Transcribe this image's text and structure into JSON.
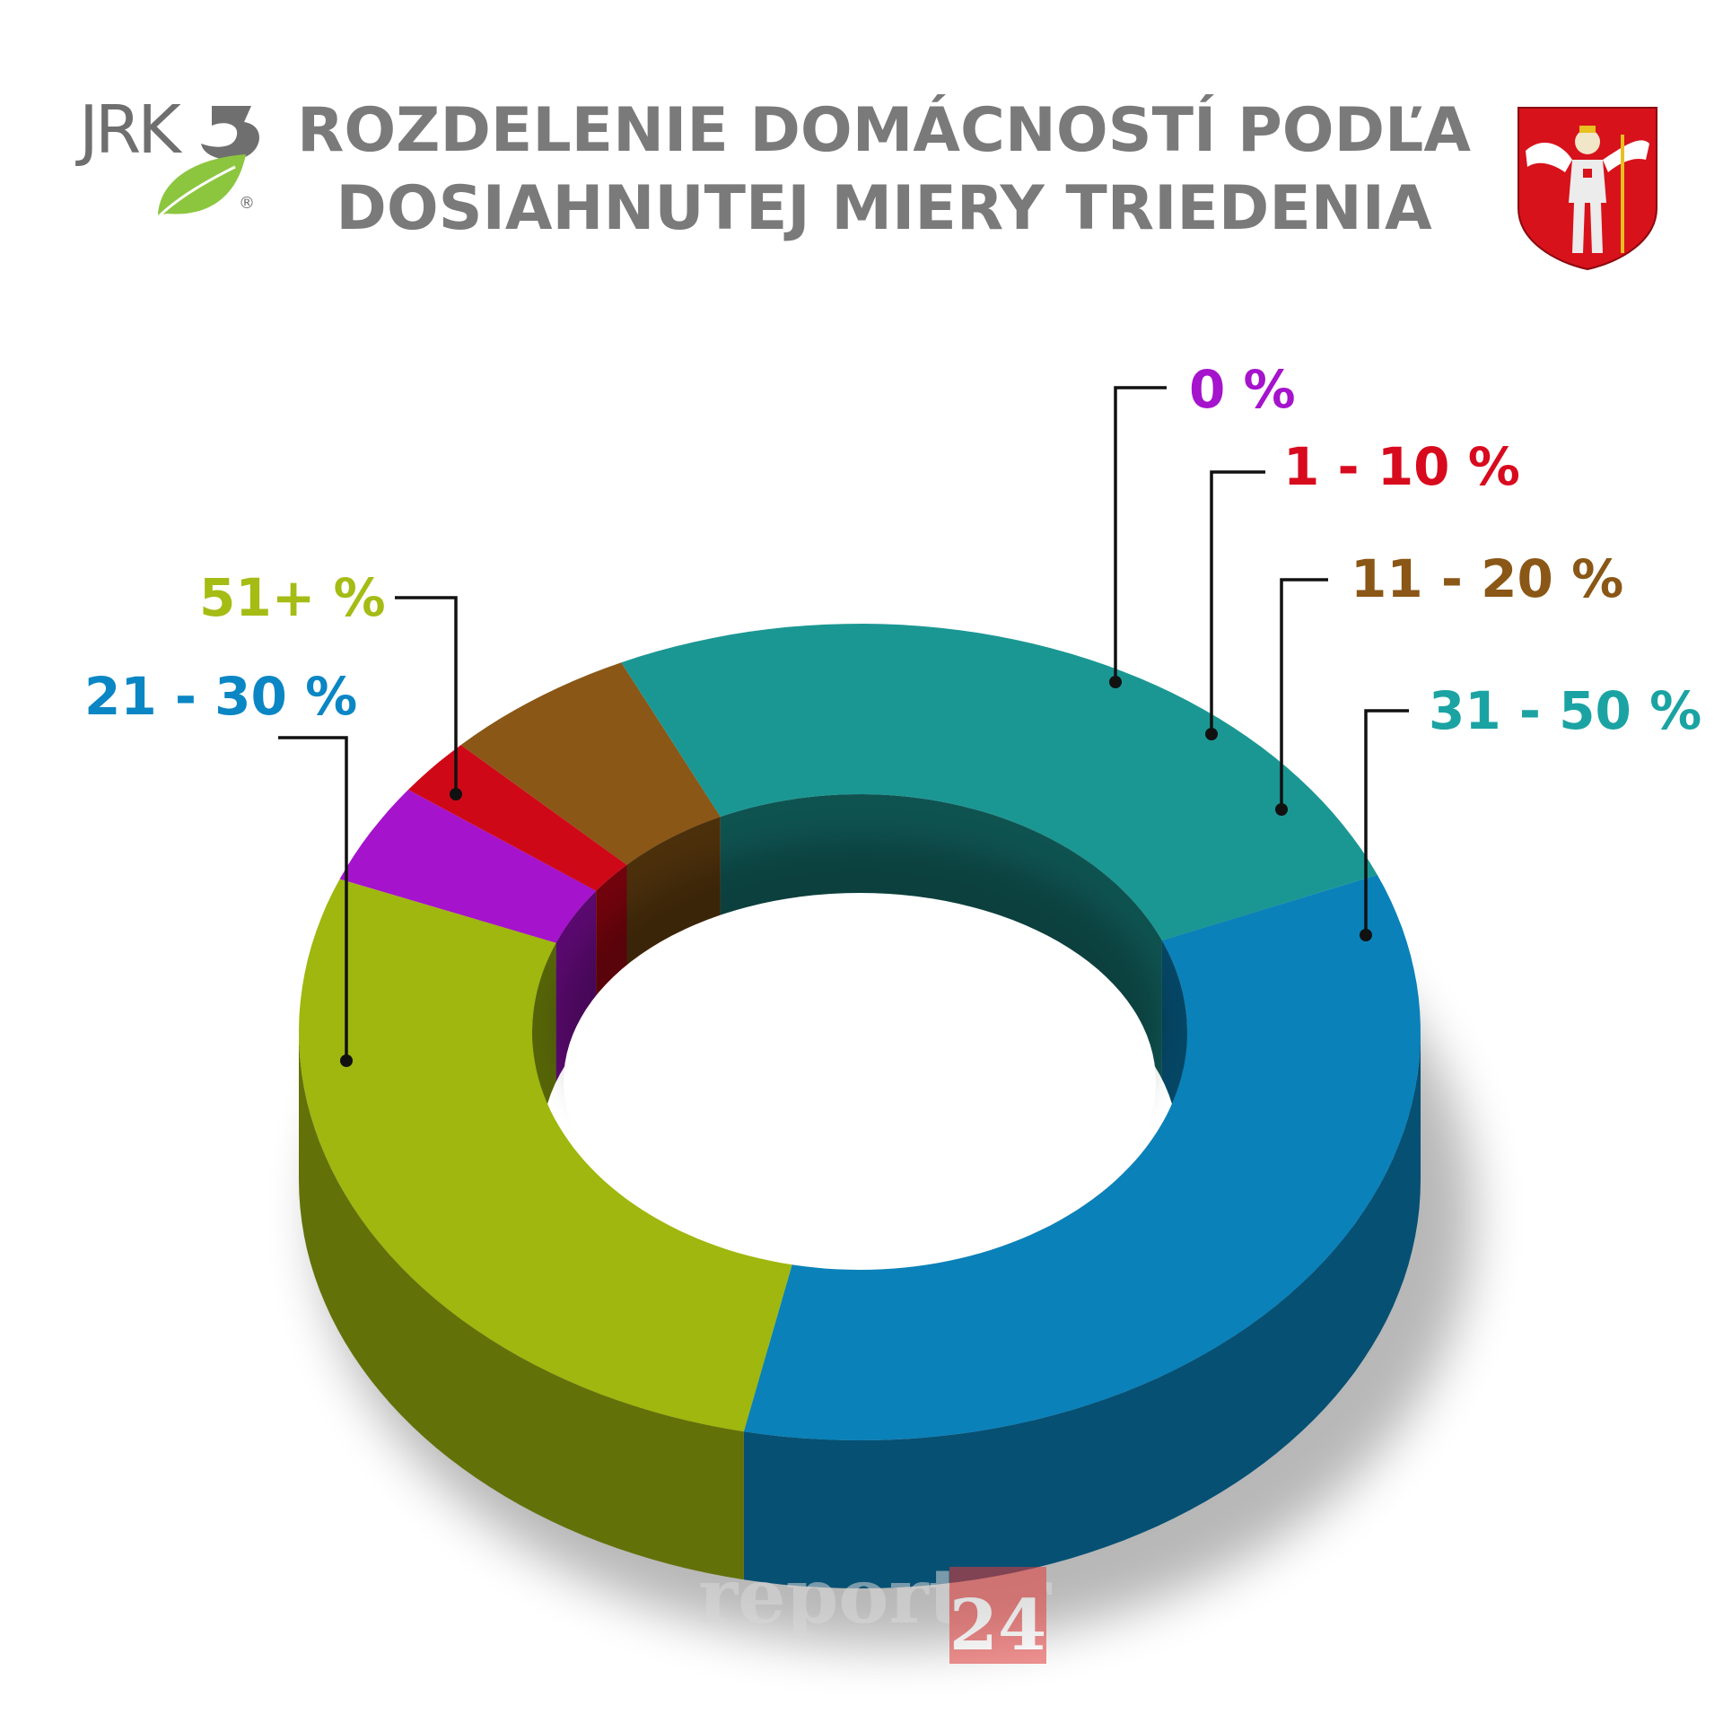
{
  "title": {
    "line1": "ROZDELENIE DOMÁCNOSTÍ PODĽA",
    "line2": "DOSIAHNUTEJ MIERY TRIEDENIA"
  },
  "logo_left": {
    "text": "JRK",
    "registered": "®",
    "icon": "leaf-icon"
  },
  "logo_right": {
    "icon": "coat-of-arms-icon"
  },
  "watermark": {
    "text": "reporter",
    "number": "24"
  },
  "chart_data": {
    "type": "pie",
    "style": "3d-donut",
    "categories": [
      "0 %",
      "1 - 10 %",
      "11 - 20 %",
      "31 - 50 %",
      "21 - 30 %",
      "51+ %"
    ],
    "values": [
      4.0,
      2.3,
      5.6,
      25.7,
      34.6,
      27.8
    ],
    "colors": [
      "#a513cc",
      "#cf0818",
      "#8a5716",
      "#1b9793",
      "#0a81b9",
      "#9fb70e"
    ],
    "label_colors": [
      "#a513cc",
      "#d80a1e",
      "#8a5716",
      "#1ba3a3",
      "#0a86c4",
      "#a5bc15"
    ]
  }
}
